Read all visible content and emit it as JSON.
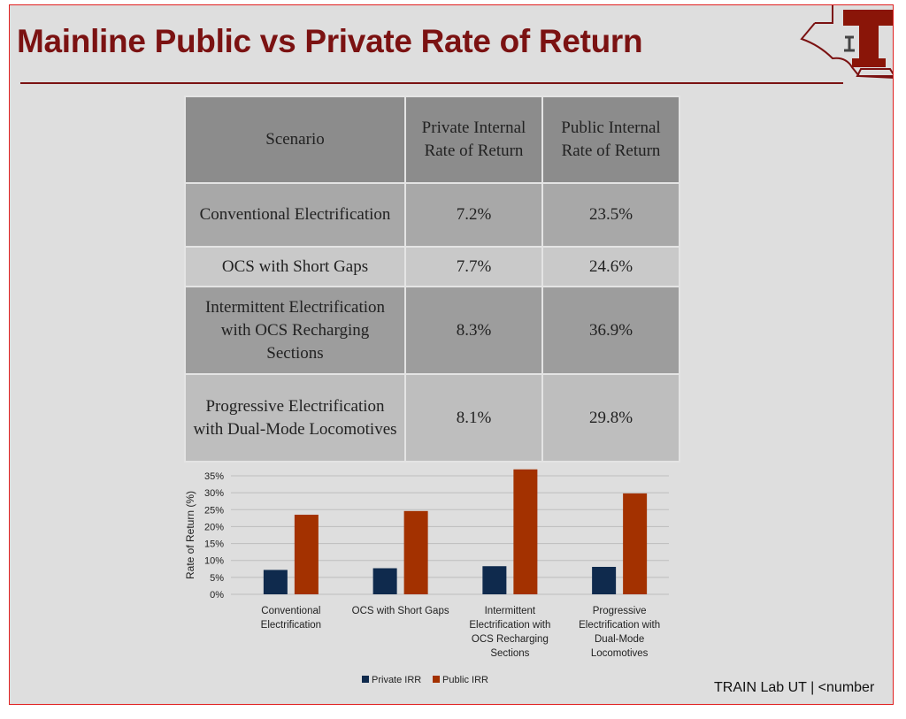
{
  "slide": {
    "title": "Mainline Public vs Private Rate of Return",
    "logo_text": "T",
    "footer": "TRAIN Lab UT | <number"
  },
  "table": {
    "headers": [
      "Scenario",
      "Private Internal Rate of Return",
      "Public Internal Rate of Return"
    ],
    "rows": [
      [
        "Conventional Electrification",
        "7.2%",
        "23.5%"
      ],
      [
        "OCS with Short Gaps",
        "7.7%",
        "24.6%"
      ],
      [
        "Intermittent Electrification with OCS Recharging Sections",
        "8.3%",
        "36.9%"
      ],
      [
        "Progressive Electrification with Dual-Mode Locomotives",
        "8.1%",
        "29.8%"
      ]
    ]
  },
  "colors": {
    "title": "#7b1212",
    "private": "#0f2a4d",
    "public": "#a33100",
    "border": "#e02020"
  },
  "chart_data": {
    "type": "bar",
    "title": "",
    "xlabel": "",
    "ylabel": "Rate of Return (%)",
    "ylim": [
      0,
      35
    ],
    "yticks": [
      "0%",
      "5%",
      "10%",
      "15%",
      "20%",
      "25%",
      "30%",
      "35%"
    ],
    "ytick_values": [
      0,
      5,
      10,
      15,
      20,
      25,
      30,
      35
    ],
    "categories": [
      [
        "Conventional",
        "Electrification"
      ],
      [
        "OCS with Short Gaps"
      ],
      [
        "Intermittent",
        "Electrification with",
        "OCS Recharging",
        "Sections"
      ],
      [
        "Progressive",
        "Electrification with",
        "Dual-Mode",
        "Locomotives"
      ]
    ],
    "series": [
      {
        "name": "Private IRR",
        "values": [
          7.2,
          7.7,
          8.3,
          8.1
        ]
      },
      {
        "name": "Public IRR",
        "values": [
          23.5,
          24.6,
          36.9,
          29.8
        ]
      }
    ],
    "grid": true,
    "legend": "bottom"
  }
}
